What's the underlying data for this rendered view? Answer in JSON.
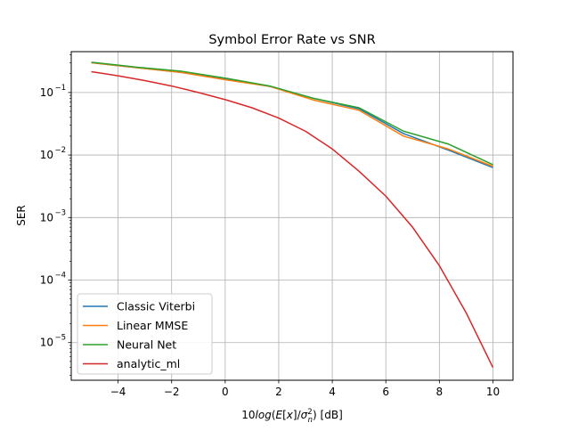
{
  "chart_data": {
    "type": "line",
    "title": "Symbol Error Rate vs SNR",
    "xlabel": "10log(E[x]/σ_n^2) [dB]",
    "ylabel": "SER",
    "yscale": "log",
    "xlim": [
      -5.75,
      10.75
    ],
    "ylim": [
      2.5e-06,
      0.45
    ],
    "grid": true,
    "legend_position": "lower-left",
    "xticks": [
      -4,
      -2,
      0,
      2,
      4,
      6,
      8,
      10
    ],
    "xtick_labels": [
      "−4",
      "−2",
      "0",
      "2",
      "4",
      "6",
      "8",
      "10"
    ],
    "yticks": [
      1e-05,
      0.0001,
      0.001,
      0.01,
      0.1
    ],
    "ytick_labels": [
      {
        "base": "10",
        "exp": "−5"
      },
      {
        "base": "10",
        "exp": "−4"
      },
      {
        "base": "10",
        "exp": "−3"
      },
      {
        "base": "10",
        "exp": "−2"
      },
      {
        "base": "10",
        "exp": "−1"
      }
    ],
    "x": [
      -5,
      -3.333,
      -1.667,
      0,
      1.667,
      3.333,
      5,
      6.667,
      8.333,
      10
    ],
    "series": [
      {
        "name": "Classic Viterbi",
        "color": "#1f77b4",
        "values": [
          0.3,
          0.25,
          0.21,
          0.165,
          0.125,
          0.08,
          0.055,
          0.022,
          0.012,
          0.0063
        ]
      },
      {
        "name": "Linear MMSE",
        "color": "#ff7f0e",
        "values": [
          0.3,
          0.25,
          0.21,
          0.16,
          0.125,
          0.075,
          0.052,
          0.02,
          0.0125,
          0.0066
        ]
      },
      {
        "name": "Neural Net",
        "color": "#2ca02c",
        "values": [
          0.305,
          0.255,
          0.22,
          0.17,
          0.127,
          0.08,
          0.057,
          0.024,
          0.015,
          0.007
        ]
      },
      {
        "name": "analytic_ml",
        "color": "#d62728",
        "x": [
          -5,
          -4,
          -3,
          -2,
          -1,
          0,
          1,
          2,
          3,
          4,
          5,
          6,
          7,
          8,
          9,
          10
        ],
        "values": [
          0.215,
          0.185,
          0.155,
          0.127,
          0.1,
          0.077,
          0.057,
          0.039,
          0.024,
          0.0125,
          0.0055,
          0.0022,
          0.0007,
          0.00017,
          3e-05,
          4e-06
        ]
      }
    ]
  }
}
